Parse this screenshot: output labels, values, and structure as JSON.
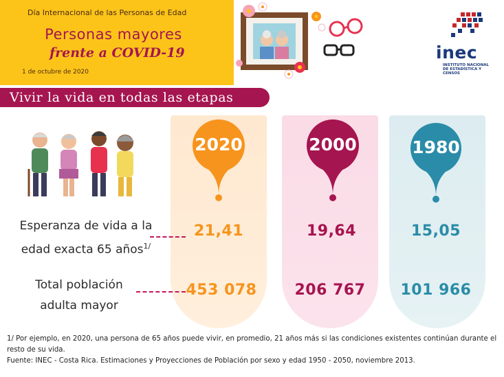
{
  "header": {
    "event_title": "Día Internacional de las Personas de Edad",
    "main_title": "Personas mayores",
    "sub_title": "frente a COVID-19",
    "date": "1 de octubre de 2020"
  },
  "logo": {
    "word": "inec",
    "line1": "INSTITUTO NACIONAL",
    "line2": "DE ESTADÍSTICA Y CENSOS"
  },
  "section": {
    "title": "Vivir la vida en todas las etapas"
  },
  "years": [
    "2020",
    "2000",
    "1980"
  ],
  "rows": [
    {
      "label_line1": "Esperanza de vida a la",
      "label_line2": "edad exacta 65 años",
      "note_mark": "1/",
      "values": [
        "21,41",
        "19,64",
        "15,05"
      ]
    },
    {
      "label_line1": "Total población",
      "label_line2": "adulta mayor",
      "values": [
        "453 078",
        "206 767",
        "101 966"
      ]
    }
  ],
  "footnote": "1/ Por ejemplo, en 2020, una persona de 65 años puede vivir, en promedio, 21 años más si las condiciones existentes continúan durante el resto de su vida.",
  "source": "Fuente: INEC - Costa Rica. Estimaciones y Proyecciones de Población por sexo y edad 1950 - 2050, noviembre 2013.",
  "colors": {
    "magenta": "#a5154f",
    "orange": "#f7941d",
    "teal": "#2a8ca8",
    "yellow": "#fcc419"
  }
}
